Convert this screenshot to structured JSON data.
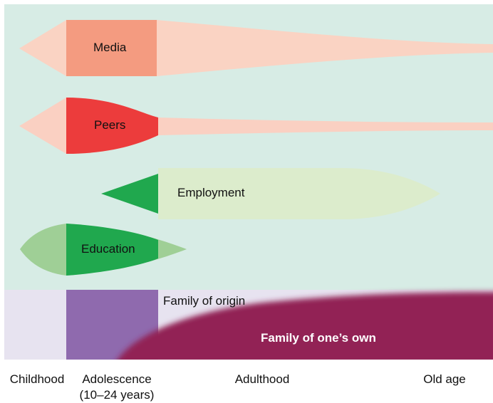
{
  "colors": {
    "background_top": "#d7ece5",
    "background_bottom": "#e7e3f0",
    "media_light": "#fad3c3",
    "media_dark": "#f49b80",
    "peers_light": "#fad0c2",
    "peers_dark": "#ec3c3c",
    "employment_light": "#dceccc",
    "employment_dark": "#20a84e",
    "education_light": "#9fcf96",
    "education_dark": "#20a84e",
    "adolescence_band": "#8f6aae",
    "family_own": "#922455"
  },
  "streams": {
    "media": "Media",
    "peers": "Peers",
    "employment": "Employment",
    "education": "Education"
  },
  "family": {
    "origin": "Family of origin",
    "own": "Family of one’s own"
  },
  "life_stages": {
    "childhood": "Childhood",
    "adolescence": "Adolescence",
    "adolescence_range": "(10–24 years)",
    "adulthood": "Adulthood",
    "old_age": "Old age"
  }
}
